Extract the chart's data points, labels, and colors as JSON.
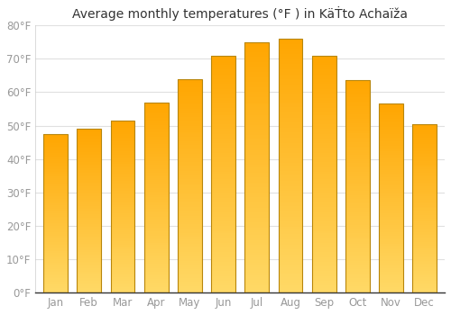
{
  "title": "Average monthly temperatures (°F ) in KäṪto Achaïža",
  "months": [
    "Jan",
    "Feb",
    "Mar",
    "Apr",
    "May",
    "Jun",
    "Jul",
    "Aug",
    "Sep",
    "Oct",
    "Nov",
    "Dec"
  ],
  "values": [
    47.5,
    49,
    51.5,
    57,
    64,
    71,
    75,
    76,
    71,
    63.5,
    56.5,
    50.5
  ],
  "ylim": [
    0,
    80
  ],
  "yticks": [
    0,
    10,
    20,
    30,
    40,
    50,
    60,
    70,
    80
  ],
  "ytick_labels": [
    "0°F",
    "10°F",
    "20°F",
    "30°F",
    "40°F",
    "50°F",
    "60°F",
    "70°F",
    "80°F"
  ],
  "bg_color": "#ffffff",
  "plot_bg_color": "#ffffff",
  "grid_color": "#e0e0e0",
  "bar_edge_color": "#b8860b",
  "bar_color_bottom": "#FFD966",
  "bar_color_top": "#FFA500",
  "title_fontsize": 10,
  "tick_fontsize": 8.5,
  "tick_color": "#999999"
}
